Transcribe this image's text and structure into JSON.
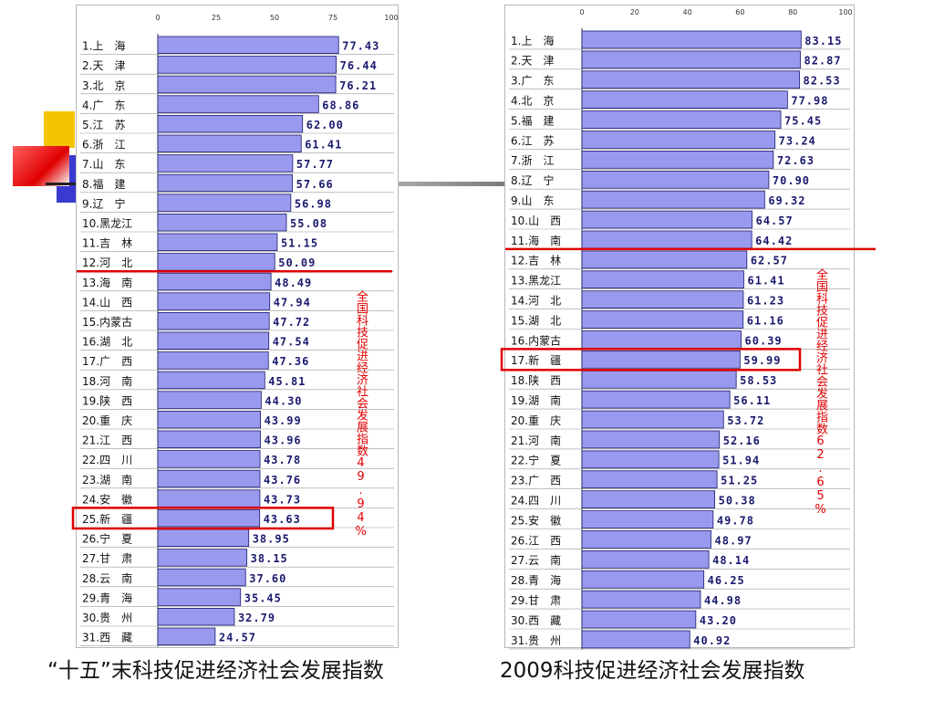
{
  "captions": {
    "left": "“十五”末科技促进经济社会发展指数",
    "right": "2009科技促进经济社会发展指数"
  },
  "colors": {
    "bar_fill": "#9999ee",
    "bar_stroke": "#1a1a6e",
    "highlight": "#e00000",
    "value_text": "#1a1a6e"
  },
  "chart_data": [
    {
      "type": "bar",
      "orientation": "horizontal",
      "xlim": [
        0,
        100
      ],
      "ticks": [
        "0",
        "25",
        "50",
        "75",
        "100"
      ],
      "annotation": "全国科技促进经济社会发展指数49.94%",
      "national_after_rank": 12,
      "highlight_rank": 25,
      "categories": [
        "1.上　海",
        "2.天　津",
        "3.北　京",
        "4.广　东",
        "5.江　苏",
        "6.浙　江",
        "7.山　东",
        "8.福　建",
        "9.辽　宁",
        "10.黑龙江",
        "11.吉　林",
        "12.河　北",
        "13.海　南",
        "14.山　西",
        "15.内蒙古",
        "16.湖　北",
        "17.广　西",
        "18.河　南",
        "19.陕　西",
        "20.重　庆",
        "21.江　西",
        "22.四　川",
        "23.湖　南",
        "24.安　徽",
        "25.新　疆",
        "26.宁　夏",
        "27.甘　肃",
        "28.云　南",
        "29.青　海",
        "30.贵　州",
        "31.西　藏"
      ],
      "values": [
        77.43,
        76.44,
        76.21,
        68.86,
        62.0,
        61.41,
        57.77,
        57.66,
        56.98,
        55.08,
        51.15,
        50.09,
        48.49,
        47.94,
        47.72,
        47.54,
        47.36,
        45.81,
        44.3,
        43.99,
        43.96,
        43.78,
        43.76,
        43.73,
        43.63,
        38.95,
        38.15,
        37.6,
        35.45,
        32.79,
        24.57
      ],
      "labels": [
        "77.43",
        "76.44",
        "76.21",
        "68.86",
        "62.00",
        "61.41",
        "57.77",
        "57.66",
        "56.98",
        "55.08",
        "51.15",
        "50.09",
        "48.49",
        "47.94",
        "47.72",
        "47.54",
        "47.36",
        "45.81",
        "44.30",
        "43.99",
        "43.96",
        "43.78",
        "43.76",
        "43.73",
        "43.63",
        "38.95",
        "38.15",
        "37.60",
        "35.45",
        "32.79",
        "24.57"
      ]
    },
    {
      "type": "bar",
      "orientation": "horizontal",
      "xlim": [
        0,
        100
      ],
      "ticks": [
        "0",
        "20",
        "40",
        "60",
        "80",
        "100"
      ],
      "annotation": "全国科技促进经济社会发展指数62.65%",
      "national_after_rank": 11,
      "highlight_rank": 17,
      "categories": [
        "1.上　海",
        "2.天　津",
        "3.广　东",
        "4.北　京",
        "5.福　建",
        "6.江　苏",
        "7.浙　江",
        "8.辽　宁",
        "9.山　东",
        "10.山　西",
        "11.海　南",
        "12.吉　林",
        "13.黑龙江",
        "14.河　北",
        "15.湖　北",
        "16.内蒙古",
        "17.新　疆",
        "18.陕　西",
        "19.湖　南",
        "20.重　庆",
        "21.河　南",
        "22.宁　夏",
        "23.广　西",
        "24.四　川",
        "25.安　徽",
        "26.江　西",
        "27.云　南",
        "28.青　海",
        "29.甘　肃",
        "30.西　藏",
        "31.贵　州"
      ],
      "values": [
        83.15,
        82.87,
        82.53,
        77.98,
        75.45,
        73.24,
        72.63,
        70.9,
        69.32,
        64.57,
        64.42,
        62.57,
        61.41,
        61.23,
        61.16,
        60.39,
        59.99,
        58.53,
        56.11,
        53.72,
        52.16,
        51.94,
        51.25,
        50.38,
        49.78,
        48.97,
        48.14,
        46.25,
        44.98,
        43.2,
        40.92
      ],
      "labels": [
        "83.15",
        "82.87",
        "82.53",
        "77.98",
        "75.45",
        "73.24",
        "72.63",
        "70.90",
        "69.32",
        "64.57",
        "64.42",
        "62.57",
        "61.41",
        "61.23",
        "61.16",
        "60.39",
        "59.99",
        "58.53",
        "56.11",
        "53.72",
        "52.16",
        "51.94",
        "51.25",
        "50.38",
        "49.78",
        "48.97",
        "48.14",
        "46.25",
        "44.98",
        "43.20",
        "40.92"
      ]
    }
  ]
}
